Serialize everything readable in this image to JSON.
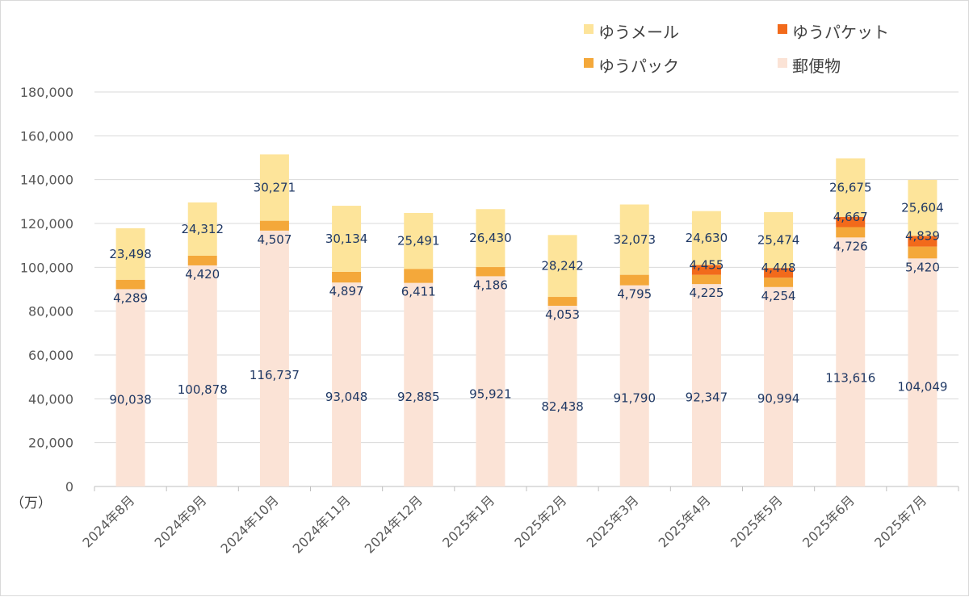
{
  "chart_data": {
    "type": "bar",
    "stacked": true,
    "unit_label": "（万）",
    "categories": [
      "2024年8月",
      "2024年9月",
      "2024年10月",
      "2024年11月",
      "2024年12月",
      "2025年1月",
      "2025年2月",
      "2025年3月",
      "2025年4月",
      "2025年5月",
      "2025年6月",
      "2025年7月"
    ],
    "series": [
      {
        "name": "郵便物",
        "color": "#fbe3d6",
        "values": [
          90038,
          100878,
          116737,
          93048,
          92885,
          95921,
          82438,
          91790,
          92347,
          90994,
          113616,
          104049
        ]
      },
      {
        "name": "ゆうパック",
        "color": "#f4a83a",
        "values": [
          4289,
          4420,
          4507,
          4897,
          6411,
          4186,
          4053,
          4795,
          4225,
          4254,
          4726,
          5420
        ]
      },
      {
        "name": "ゆうパケット",
        "color": "#f26a1b",
        "values": [
          null,
          null,
          null,
          null,
          null,
          null,
          null,
          null,
          4455,
          4448,
          4667,
          4839
        ]
      },
      {
        "name": "ゆうメール",
        "color": "#fde49a",
        "values": [
          23498,
          24312,
          30271,
          30134,
          25491,
          26430,
          28242,
          32073,
          24630,
          25474,
          26675,
          25604
        ]
      }
    ],
    "ylim": [
      0,
      180000
    ],
    "yticks": [
      0,
      20000,
      40000,
      60000,
      80000,
      100000,
      120000,
      140000,
      160000,
      180000
    ],
    "ytick_labels": [
      "0",
      "20,000",
      "40,000",
      "60,000",
      "80,000",
      "100,000",
      "120,000",
      "140,000",
      "160,000",
      "180,000"
    ],
    "grid": true,
    "legend_position": "top-right",
    "legend_order": [
      "ゆうメール",
      "ゆうパケット",
      "ゆうパック",
      "郵便物"
    ]
  }
}
